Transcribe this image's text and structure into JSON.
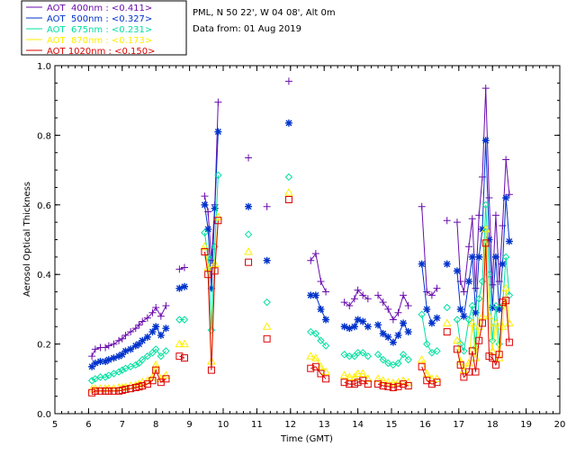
{
  "header": {
    "site_line": "PML, N 50 22', W 04 08', Alt 0m",
    "date_line": "Data from: 01 Aug 2019"
  },
  "chart_data": {
    "type": "line",
    "title": "",
    "xlabel": "Time (GMT)",
    "ylabel": "Aerosol Optical Thickness",
    "xlim": [
      5,
      20
    ],
    "ylim": [
      0.0,
      1.0
    ],
    "x_ticks": [
      5,
      6,
      7,
      8,
      9,
      10,
      11,
      12,
      13,
      14,
      15,
      16,
      17,
      18,
      19,
      20
    ],
    "y_ticks": [
      0.0,
      0.2,
      0.4,
      0.6,
      0.8,
      1.0
    ],
    "y_tick_labels": [
      "0.0",
      "0.2",
      "0.4",
      "0.6",
      "0.8",
      "1.0"
    ],
    "grid": false,
    "legend_placement": "top-left outside",
    "series": [
      {
        "name": "AOT  400nm : <0.411>",
        "color": "#6a0dad",
        "marker": "plus",
        "segments": [
          {
            "x": [
              6.1,
              6.2,
              6.35,
              6.5,
              6.6,
              6.75,
              6.9,
              7.0,
              7.1,
              7.25,
              7.4,
              7.5,
              7.6,
              7.75,
              7.9,
              8.0,
              8.15,
              8.3
            ],
            "y": [
              0.165,
              0.185,
              0.19,
              0.19,
              0.195,
              0.2,
              0.21,
              0.215,
              0.225,
              0.235,
              0.245,
              0.255,
              0.265,
              0.275,
              0.29,
              0.305,
              0.28,
              0.31
            ]
          },
          {
            "x": [
              8.7,
              8.85
            ],
            "y": [
              0.415,
              0.42
            ]
          },
          {
            "x": [
              9.45,
              9.55,
              9.65,
              9.75,
              9.85
            ],
            "y": [
              0.625,
              0.58,
              0.44,
              0.6,
              0.895
            ]
          },
          {
            "x": [
              12.6,
              12.75,
              12.9,
              13.05
            ],
            "y": [
              0.44,
              0.46,
              0.38,
              0.35
            ]
          },
          {
            "x": [
              13.6,
              13.75,
              13.9,
              14.0,
              14.15,
              14.3
            ],
            "y": [
              0.32,
              0.31,
              0.33,
              0.355,
              0.34,
              0.33
            ]
          },
          {
            "x": [
              14.6,
              14.75,
              14.9,
              15.05,
              15.2,
              15.35,
              15.5
            ],
            "y": [
              0.34,
              0.32,
              0.3,
              0.27,
              0.29,
              0.34,
              0.31
            ]
          },
          {
            "x": [
              15.9,
              16.05,
              16.2,
              16.35
            ],
            "y": [
              0.595,
              0.35,
              0.34,
              0.36
            ]
          },
          {
            "x": [
              16.65
            ],
            "y": [
              0.555
            ]
          },
          {
            "x": [
              16.95,
              17.05,
              17.15,
              17.3,
              17.4,
              17.5,
              17.6,
              17.7,
              17.8,
              17.9,
              18.0,
              18.1,
              18.2,
              18.3,
              18.4,
              18.5
            ],
            "y": [
              0.55,
              0.38,
              0.35,
              0.48,
              0.56,
              0.36,
              0.57,
              0.68,
              0.935,
              0.62,
              0.37,
              0.57,
              0.38,
              0.54,
              0.73,
              0.63
            ]
          }
        ],
        "isolated": {
          "x": [
            10.75,
            11.3,
            11.95
          ],
          "y": [
            0.735,
            0.595,
            0.955
          ]
        }
      },
      {
        "name": "AOT  500nm : <0.327>",
        "color": "#0033cc",
        "marker": "asterisk",
        "segments": [
          {
            "x": [
              6.1,
              6.2,
              6.35,
              6.5,
              6.6,
              6.75,
              6.9,
              7.0,
              7.1,
              7.25,
              7.4,
              7.5,
              7.6,
              7.75,
              7.9,
              8.0,
              8.15,
              8.3
            ],
            "y": [
              0.135,
              0.145,
              0.15,
              0.15,
              0.155,
              0.16,
              0.165,
              0.17,
              0.18,
              0.185,
              0.195,
              0.2,
              0.21,
              0.22,
              0.235,
              0.25,
              0.225,
              0.245
            ]
          },
          {
            "x": [
              8.7,
              8.85
            ],
            "y": [
              0.36,
              0.365
            ]
          },
          {
            "x": [
              9.45,
              9.55,
              9.65,
              9.75,
              9.85
            ],
            "y": [
              0.6,
              0.53,
              0.36,
              0.59,
              0.81
            ]
          },
          {
            "x": [
              12.6,
              12.75,
              12.9,
              13.05
            ],
            "y": [
              0.34,
              0.34,
              0.3,
              0.27
            ]
          },
          {
            "x": [
              13.6,
              13.75,
              13.9,
              14.0,
              14.15,
              14.3
            ],
            "y": [
              0.25,
              0.245,
              0.25,
              0.27,
              0.265,
              0.25
            ]
          },
          {
            "x": [
              14.6,
              14.75,
              14.9,
              15.05,
              15.2,
              15.35,
              15.5
            ],
            "y": [
              0.255,
              0.23,
              0.22,
              0.205,
              0.225,
              0.26,
              0.235
            ]
          },
          {
            "x": [
              15.9,
              16.05,
              16.2,
              16.35
            ],
            "y": [
              0.43,
              0.3,
              0.26,
              0.275
            ]
          },
          {
            "x": [
              16.65
            ],
            "y": [
              0.43
            ]
          },
          {
            "x": [
              16.95,
              17.05,
              17.15,
              17.3,
              17.4,
              17.5,
              17.6,
              17.7,
              17.8,
              17.9,
              18.0,
              18.1,
              18.2,
              18.3,
              18.4,
              18.5
            ],
            "y": [
              0.41,
              0.3,
              0.28,
              0.38,
              0.45,
              0.29,
              0.45,
              0.53,
              0.785,
              0.5,
              0.305,
              0.45,
              0.3,
              0.43,
              0.62,
              0.495
            ]
          }
        ],
        "isolated": {
          "x": [
            10.75,
            11.3,
            11.95
          ],
          "y": [
            0.595,
            0.44,
            0.835
          ]
        }
      },
      {
        "name": "AOT  675nm : <0.231>",
        "color": "#00e0a0",
        "marker": "diamond",
        "segments": [
          {
            "x": [
              6.1,
              6.2,
              6.35,
              6.5,
              6.6,
              6.75,
              6.9,
              7.0,
              7.1,
              7.25,
              7.4,
              7.5,
              7.6,
              7.75,
              7.9,
              8.0,
              8.15,
              8.3
            ],
            "y": [
              0.095,
              0.1,
              0.105,
              0.105,
              0.11,
              0.115,
              0.12,
              0.125,
              0.13,
              0.135,
              0.14,
              0.145,
              0.155,
              0.165,
              0.175,
              0.185,
              0.165,
              0.18
            ]
          },
          {
            "x": [
              8.7,
              8.85
            ],
            "y": [
              0.27,
              0.27
            ]
          },
          {
            "x": [
              9.45,
              9.55,
              9.65,
              9.75,
              9.85
            ],
            "y": [
              0.52,
              0.45,
              0.24,
              0.48,
              0.685
            ]
          },
          {
            "x": [
              12.6,
              12.75,
              12.9,
              13.05
            ],
            "y": [
              0.235,
              0.23,
              0.21,
              0.195
            ]
          },
          {
            "x": [
              13.6,
              13.75,
              13.9,
              14.0,
              14.15,
              14.3
            ],
            "y": [
              0.17,
              0.165,
              0.165,
              0.175,
              0.175,
              0.165
            ]
          },
          {
            "x": [
              14.6,
              14.75,
              14.9,
              15.05,
              15.2,
              15.35,
              15.5
            ],
            "y": [
              0.17,
              0.155,
              0.145,
              0.14,
              0.145,
              0.17,
              0.155
            ]
          },
          {
            "x": [
              15.9,
              16.05,
              16.2,
              16.35
            ],
            "y": [
              0.285,
              0.2,
              0.175,
              0.18
            ]
          },
          {
            "x": [
              16.65
            ],
            "y": [
              0.305
            ]
          },
          {
            "x": [
              16.95,
              17.05,
              17.15,
              17.3,
              17.4,
              17.5,
              17.6,
              17.7,
              17.8,
              17.9,
              18.0,
              18.1,
              18.2,
              18.3,
              18.4,
              18.5
            ],
            "y": [
              0.27,
              0.2,
              0.18,
              0.27,
              0.31,
              0.19,
              0.33,
              0.38,
              0.6,
              0.4,
              0.21,
              0.31,
              0.2,
              0.31,
              0.45,
              0.34
            ]
          }
        ],
        "isolated": {
          "x": [
            10.75,
            11.3,
            11.95
          ],
          "y": [
            0.515,
            0.32,
            0.68
          ]
        }
      },
      {
        "name": "AOT  870nm : <0.173>",
        "color": "#ffee00",
        "marker": "triangle",
        "segments": [
          {
            "x": [
              6.1,
              6.2,
              6.35,
              6.5,
              6.6,
              6.75,
              6.9,
              7.0,
              7.1,
              7.25,
              7.4,
              7.5,
              7.6,
              7.75,
              7.9,
              8.0,
              8.15,
              8.3
            ],
            "y": [
              0.07,
              0.072,
              0.072,
              0.072,
              0.072,
              0.072,
              0.075,
              0.075,
              0.077,
              0.08,
              0.082,
              0.085,
              0.09,
              0.095,
              0.105,
              0.14,
              0.1,
              0.11
            ]
          },
          {
            "x": [
              8.7,
              8.85
            ],
            "y": [
              0.2,
              0.2
            ]
          },
          {
            "x": [
              9.45,
              9.55,
              9.65,
              9.75,
              9.85
            ],
            "y": [
              0.48,
              0.42,
              0.15,
              0.43,
              0.565
            ]
          },
          {
            "x": [
              12.6,
              12.75,
              12.9,
              13.05
            ],
            "y": [
              0.165,
              0.16,
              0.135,
              0.12
            ]
          },
          {
            "x": [
              13.6,
              13.75,
              13.9,
              14.0,
              14.15,
              14.3
            ],
            "y": [
              0.11,
              0.105,
              0.105,
              0.115,
              0.115,
              0.1
            ]
          },
          {
            "x": [
              14.6,
              14.75,
              14.9,
              15.05,
              15.2,
              15.35,
              15.5
            ],
            "y": [
              0.1,
              0.095,
              0.09,
              0.088,
              0.09,
              0.095,
              0.09
            ]
          },
          {
            "x": [
              15.9,
              16.05,
              16.2,
              16.35
            ],
            "y": [
              0.155,
              0.115,
              0.1,
              0.1
            ]
          },
          {
            "x": [
              16.65
            ],
            "y": [
              0.26
            ]
          },
          {
            "x": [
              16.95,
              17.05,
              17.15,
              17.3,
              17.4,
              17.5,
              17.6,
              17.7,
              17.8,
              17.9,
              18.0,
              18.1,
              18.2,
              18.3,
              18.4,
              18.5
            ],
            "y": [
              0.21,
              0.15,
              0.125,
              0.145,
              0.26,
              0.16,
              0.25,
              0.28,
              0.53,
              0.28,
              0.18,
              0.26,
              0.16,
              0.25,
              0.36,
              0.26
            ]
          }
        ],
        "isolated": {
          "x": [
            10.75,
            11.3,
            11.95
          ],
          "y": [
            0.465,
            0.25,
            0.635
          ]
        }
      },
      {
        "name": "AOT 1020nm : <0.150>",
        "color": "#dd0000",
        "marker": "square",
        "segments": [
          {
            "x": [
              6.1,
              6.2,
              6.35,
              6.5,
              6.6,
              6.75,
              6.9,
              7.0,
              7.1,
              7.25,
              7.4,
              7.5,
              7.6,
              7.75,
              7.9,
              8.0,
              8.15,
              8.3
            ],
            "y": [
              0.06,
              0.065,
              0.065,
              0.065,
              0.065,
              0.065,
              0.065,
              0.067,
              0.07,
              0.072,
              0.075,
              0.077,
              0.08,
              0.085,
              0.095,
              0.125,
              0.09,
              0.1
            ]
          },
          {
            "x": [
              8.7,
              8.85
            ],
            "y": [
              0.165,
              0.16
            ]
          },
          {
            "x": [
              9.45,
              9.55,
              9.65,
              9.75,
              9.85
            ],
            "y": [
              0.465,
              0.4,
              0.125,
              0.41,
              0.555
            ]
          },
          {
            "x": [
              12.6,
              12.75,
              12.9,
              13.05
            ],
            "y": [
              0.13,
              0.135,
              0.115,
              0.1
            ]
          },
          {
            "x": [
              13.6,
              13.75,
              13.9,
              14.0,
              14.15,
              14.3
            ],
            "y": [
              0.09,
              0.085,
              0.085,
              0.09,
              0.095,
              0.085
            ]
          },
          {
            "x": [
              14.6,
              14.75,
              14.9,
              15.05,
              15.2,
              15.35,
              15.5
            ],
            "y": [
              0.085,
              0.08,
              0.078,
              0.075,
              0.078,
              0.085,
              0.08
            ]
          },
          {
            "x": [
              15.9,
              16.05,
              16.2,
              16.35
            ],
            "y": [
              0.135,
              0.095,
              0.085,
              0.09
            ]
          },
          {
            "x": [
              16.65
            ],
            "y": [
              0.235
            ]
          },
          {
            "x": [
              16.95,
              17.05,
              17.15,
              17.3,
              17.4,
              17.5,
              17.6,
              17.7,
              17.8,
              17.9,
              18.0,
              18.1,
              18.2,
              18.3,
              18.4,
              18.5
            ],
            "y": [
              0.185,
              0.14,
              0.105,
              0.12,
              0.18,
              0.12,
              0.21,
              0.26,
              0.49,
              0.165,
              0.16,
              0.14,
              0.17,
              0.32,
              0.325,
              0.205
            ]
          }
        ],
        "isolated": {
          "x": [
            10.75,
            11.3,
            11.95
          ],
          "y": [
            0.435,
            0.215,
            0.615
          ]
        }
      }
    ]
  }
}
